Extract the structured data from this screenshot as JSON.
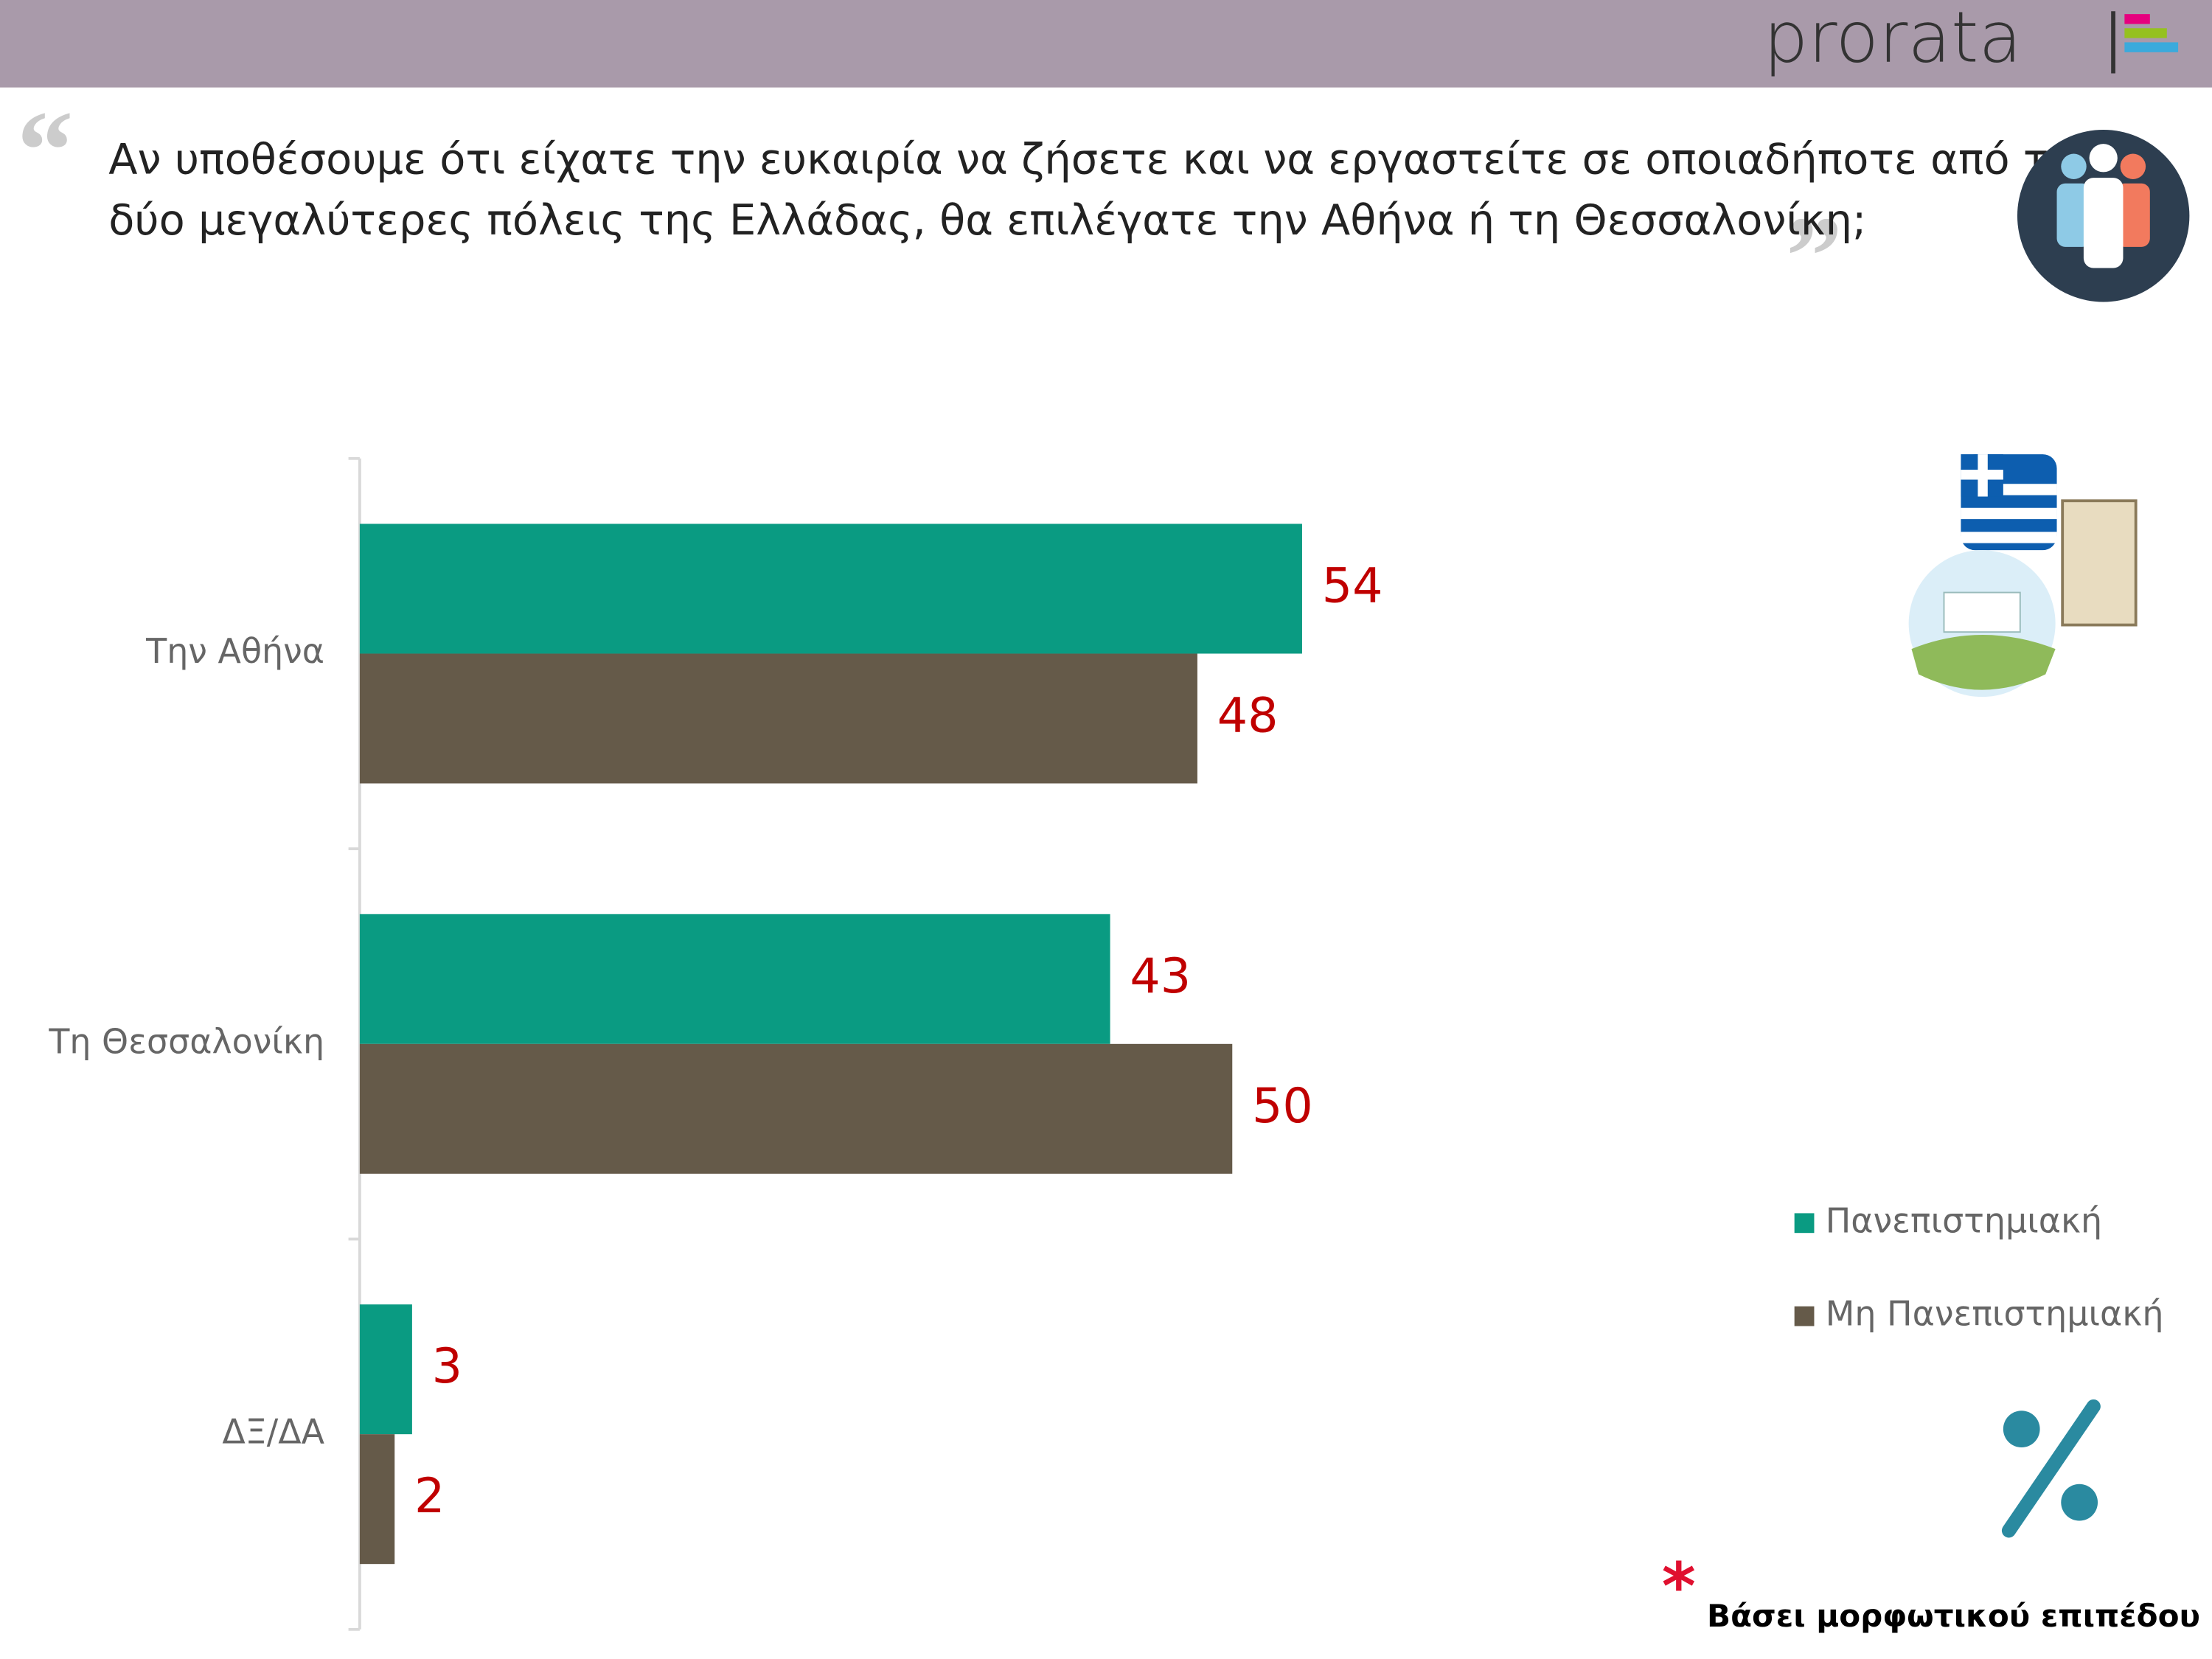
{
  "header": {
    "logo": "prorata"
  },
  "question": [
    "Αν υποθέσουμε ότι είχατε την ευκαιρία να ζήσετε και να εργαστείτε σε οποιαδήποτε από τις",
    "δύο μεγαλύτερες πόλεις της Ελλάδας, θα επιλέγατε την Αθήνα ή τη Θεσσαλονίκη;"
  ],
  "chart_data": {
    "type": "bar",
    "orientation": "horizontal",
    "categories": [
      "Την Αθήνα",
      "Τη Θεσσαλονίκη",
      "ΔΞ/ΔΑ"
    ],
    "series": [
      {
        "name": "Πανεπιστημιακή",
        "color": "#0a9b82",
        "values": [
          54,
          43,
          3
        ]
      },
      {
        "name": "Μη Πανεπιστημιακή",
        "color": "#655a49",
        "values": [
          48,
          50,
          2
        ]
      }
    ],
    "value_label_color": "#c00000",
    "legend": "right"
  },
  "footnote": {
    "mark": "*",
    "text": "Βάσει μορφωτικού επιπέδου"
  }
}
